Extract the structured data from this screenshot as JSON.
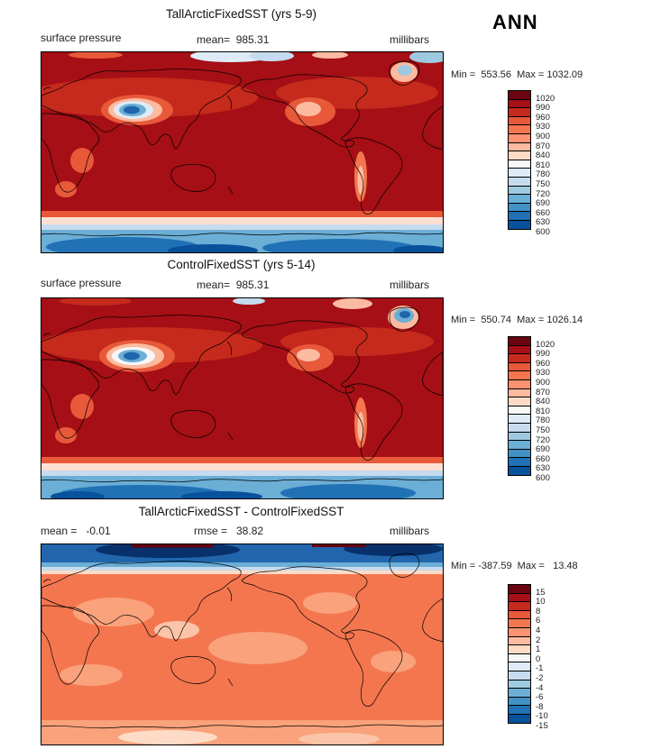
{
  "header": {
    "season_label": "ANN"
  },
  "panels": [
    {
      "title": "TallArcticFixedSST (yrs 5-9)",
      "slot_left": "surface pressure",
      "slot_center": "mean=  985.31",
      "slot_right": "millibars",
      "minmax": "Min =  553.56  Max = 1032.09",
      "colorbar_labels": [
        "1020",
        "990",
        "960",
        "930",
        "900",
        "870",
        "840",
        "810",
        "780",
        "750",
        "720",
        "690",
        "660",
        "630",
        "600"
      ],
      "colorbar_colors": [
        "#6b0410",
        "#a50f15",
        "#c62a1c",
        "#e8593a",
        "#f4764f",
        "#fc9272",
        "#fcbba1",
        "#fddbc7",
        "#f7f7f7",
        "#deebf7",
        "#c6dbef",
        "#9ecae1",
        "#6baed6",
        "#4292c6",
        "#2171b5",
        "#08519c"
      ]
    },
    {
      "title": "ControlFixedSST (yrs 5-14)",
      "slot_left": "surface pressure",
      "slot_center": "mean=  985.31",
      "slot_right": "millibars",
      "minmax": "Min =  550.74  Max = 1026.14",
      "colorbar_labels": [
        "1020",
        "990",
        "960",
        "930",
        "900",
        "870",
        "840",
        "810",
        "780",
        "750",
        "720",
        "690",
        "660",
        "630",
        "600"
      ],
      "colorbar_colors": [
        "#6b0410",
        "#a50f15",
        "#c62a1c",
        "#e8593a",
        "#f4764f",
        "#fc9272",
        "#fcbba1",
        "#fddbc7",
        "#f7f7f7",
        "#deebf7",
        "#c6dbef",
        "#9ecae1",
        "#6baed6",
        "#4292c6",
        "#2171b5",
        "#08519c"
      ]
    },
    {
      "title": "TallArcticFixedSST - ControlFixedSST",
      "slot_left": "mean =   -0.01",
      "slot_center": "rmse =   38.82",
      "slot_right": "millibars",
      "minmax": "Min = -387.59  Max =   13.48",
      "colorbar_labels": [
        "15",
        "10",
        "8",
        "6",
        "4",
        "2",
        "1",
        "0",
        "-1",
        "-2",
        "-4",
        "-6",
        "-8",
        "-10",
        "-15"
      ],
      "colorbar_colors": [
        "#6b0410",
        "#a50f15",
        "#c62a1c",
        "#e8593a",
        "#f4764f",
        "#fc9272",
        "#fcbba1",
        "#fddbc7",
        "#f7f7f7",
        "#deebf7",
        "#c6dbef",
        "#9ecae1",
        "#6baed6",
        "#4292c6",
        "#2171b5",
        "#08519c"
      ]
    }
  ],
  "chart_data": [
    {
      "type": "heatmap",
      "map_type": "global filled-contour latitude-longitude map",
      "season": "ANN",
      "variable": "surface pressure",
      "units": "millibars",
      "title": "TallArcticFixedSST (yrs 5-9)",
      "stats": {
        "mean": 985.31,
        "min": 553.56,
        "max": 1032.09
      },
      "levels": [
        600,
        630,
        660,
        690,
        720,
        750,
        780,
        810,
        840,
        870,
        900,
        930,
        960,
        990,
        1020
      ],
      "palette": "dark blue (low pressure) through white to dark red (high pressure)",
      "notable_features": [
        "dark red (990-1032 mb) over most oceans and low/mid latitudes",
        "deep blue low (<700 mb) over the Tibetan Plateau",
        "pale/blue low over Greenland",
        "blue band (600-720 mb) over Antarctica along the bottom",
        "light orange lows over the Rockies, Andes and East Africa",
        "scattered pale/blue patches along the Arctic top edge"
      ]
    },
    {
      "type": "heatmap",
      "map_type": "global filled-contour latitude-longitude map",
      "season": "ANN",
      "variable": "surface pressure",
      "units": "millibars",
      "title": "ControlFixedSST (yrs 5-14)",
      "stats": {
        "mean": 985.31,
        "min": 550.74,
        "max": 1026.14
      },
      "levels": [
        600,
        630,
        660,
        690,
        720,
        750,
        780,
        810,
        840,
        870,
        900,
        930,
        960,
        990,
        1020
      ],
      "palette": "dark blue (low pressure) through white to dark red (high pressure)",
      "notable_features": [
        "dark red (990-1026 mb) over most oceans and low/mid latitudes",
        "deep blue low over the Tibetan Plateau",
        "pronounced blue low over Greenland",
        "blue band over Antarctica along the bottom",
        "light orange lows over the Rockies and Andes"
      ]
    },
    {
      "type": "heatmap",
      "map_type": "global filled-contour latitude-longitude difference map",
      "season": "ANN",
      "variable": "surface pressure difference",
      "units": "millibars",
      "title": "TallArcticFixedSST - ControlFixedSST",
      "stats": {
        "mean": -0.01,
        "rmse": 38.82,
        "min": -387.59,
        "max": 13.48
      },
      "levels": [
        -15,
        -10,
        -8,
        -6,
        -4,
        -2,
        -1,
        0,
        1,
        2,
        4,
        6,
        8,
        10,
        15
      ],
      "palette": "dark blue (negative) through white to dark red (positive)",
      "notable_features": [
        "strong negative band (dark blue, < -15 mb) across the Arctic top edge with small deep-red slivers at the very top",
        "weak positive differences (orange, ~1-4 mb) over nearly the entire globe",
        "slightly lighter (near-zero) patches at mid latitudes and near Antarctica"
      ]
    }
  ]
}
